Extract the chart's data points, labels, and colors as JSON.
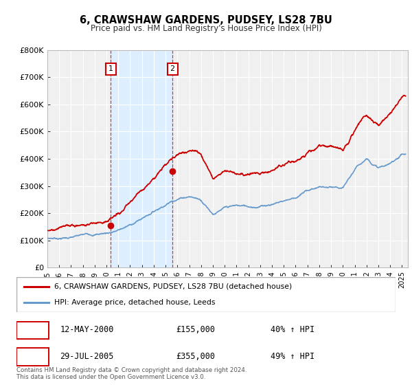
{
  "title_line1": "6, CRAWSHAW GARDENS, PUDSEY, LS28 7BU",
  "title_line2": "Price paid vs. HM Land Registry's House Price Index (HPI)",
  "ylim": [
    0,
    800000
  ],
  "yticks": [
    0,
    100000,
    200000,
    300000,
    400000,
    500000,
    600000,
    700000,
    800000
  ],
  "ytick_labels": [
    "£0",
    "£100K",
    "£200K",
    "£300K",
    "£400K",
    "£500K",
    "£600K",
    "£700K",
    "£800K"
  ],
  "xlim_start": 1995.0,
  "xlim_end": 2025.5,
  "xtick_years": [
    1995,
    1996,
    1997,
    1998,
    1999,
    2000,
    2001,
    2002,
    2003,
    2004,
    2005,
    2006,
    2007,
    2008,
    2009,
    2010,
    2011,
    2012,
    2013,
    2014,
    2015,
    2016,
    2017,
    2018,
    2019,
    2020,
    2021,
    2022,
    2023,
    2024,
    2025
  ],
  "sale1_x": 2000.37,
  "sale1_y": 155000,
  "sale2_x": 2005.58,
  "sale2_y": 355000,
  "sale1_date": "12-MAY-2000",
  "sale1_price": "£155,000",
  "sale1_hpi": "40% ↑ HPI",
  "sale2_date": "29-JUL-2005",
  "sale2_price": "£355,000",
  "sale2_hpi": "49% ↑ HPI",
  "red_color": "#cc0000",
  "blue_color": "#6699cc",
  "shading_color": "#ddeeff",
  "legend_label_red": "6, CRAWSHAW GARDENS, PUDSEY, LS28 7BU (detached house)",
  "legend_label_blue": "HPI: Average price, detached house, Leeds",
  "footer_line1": "Contains HM Land Registry data © Crown copyright and database right 2024.",
  "footer_line2": "This data is licensed under the Open Government Licence v3.0.",
  "background_color": "#f0f0f0",
  "hpi_years": [
    1995,
    1996,
    1997,
    1998,
    1999,
    2000,
    2001,
    2002,
    2003,
    2004,
    2005,
    2006,
    2007,
    2008,
    2009,
    2010,
    2011,
    2012,
    2013,
    2014,
    2015,
    2016,
    2017,
    2018,
    2019,
    2020,
    2021,
    2022,
    2023,
    2024,
    2025
  ],
  "hpi_vals": [
    85000,
    88000,
    93000,
    98000,
    103000,
    110000,
    122000,
    140000,
    165000,
    195000,
    225000,
    252000,
    265000,
    255000,
    210000,
    228000,
    232000,
    228000,
    233000,
    245000,
    260000,
    275000,
    300000,
    315000,
    308000,
    295000,
    360000,
    405000,
    375000,
    385000,
    425000
  ],
  "prop_years": [
    1995,
    1996,
    1997,
    1998,
    1999,
    2000,
    2001,
    2002,
    2003,
    2004,
    2005,
    2006,
    2007,
    2008,
    2009,
    2010,
    2011,
    2012,
    2013,
    2014,
    2015,
    2016,
    2017,
    2018,
    2019,
    2020,
    2021,
    2022,
    2023,
    2024,
    2025
  ],
  "prop_vals": [
    115000,
    118000,
    123000,
    128000,
    135000,
    155000,
    172000,
    205000,
    255000,
    308000,
    355000,
    388000,
    415000,
    400000,
    325000,
    360000,
    358000,
    350000,
    362000,
    378000,
    400000,
    422000,
    458000,
    478000,
    472000,
    460000,
    535000,
    585000,
    545000,
    585000,
    640000
  ]
}
